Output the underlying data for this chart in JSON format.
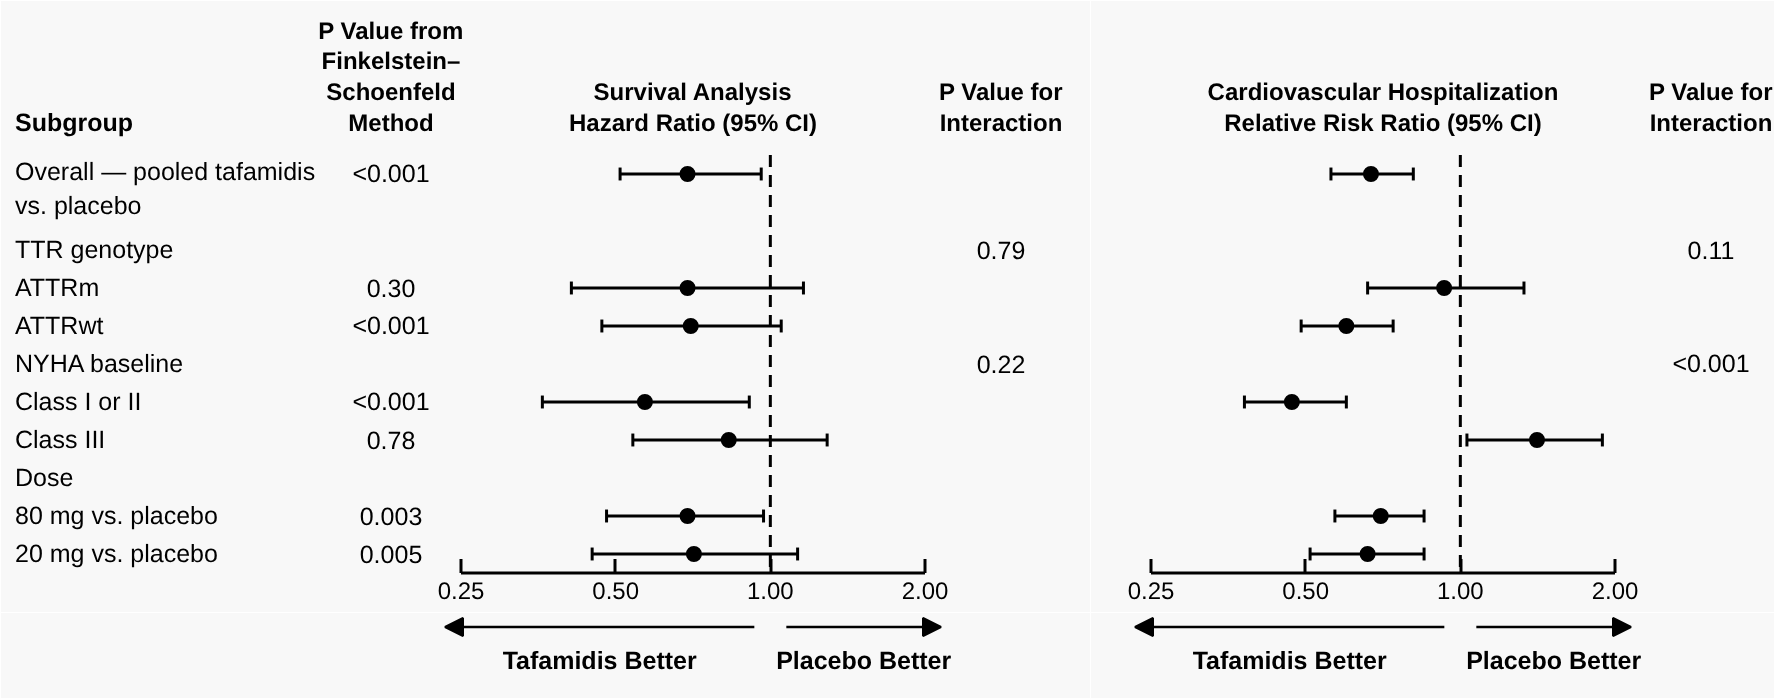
{
  "chart_data": [
    {
      "type": "scatter",
      "orientation": "horizontal",
      "title": "Survival Analysis Hazard Ratio (95% CI)",
      "ylabel": "Subgroup",
      "categories": [
        "Overall — pooled tafamidis vs. placebo",
        null,
        "TTR genotype",
        "ATTRm",
        "ATTRwt",
        "NYHA baseline",
        "Class I or II",
        "Class III",
        "Dose",
        "80 mg vs. placebo",
        "20 mg vs. placebo"
      ],
      "series": [
        {
          "color": "#000000",
          "values": [
            0.69,
            null,
            null,
            0.69,
            0.7,
            null,
            0.57,
            0.83,
            null,
            0.69,
            0.71
          ],
          "errors": [
            [
              0.51,
              0.96
            ],
            null,
            null,
            [
              0.41,
              1.16
            ],
            [
              0.47,
              1.05
            ],
            null,
            [
              0.36,
              0.91
            ],
            [
              0.54,
              1.29
            ],
            null,
            [
              0.48,
              0.97
            ],
            [
              0.45,
              1.13
            ]
          ]
        }
      ],
      "marker": "circle",
      "log": "x",
      "xlim": [
        0.25,
        2
      ],
      "xticks": [
        0.25,
        {
          "value": 0.5,
          "label": "0.50"
        },
        {
          "value": 1,
          "label": "1.00"
        },
        {
          "value": 2,
          "label": "2.00"
        }
      ],
      "ref_lines": [
        {
          "axis": "x",
          "value": 1,
          "line_style": "dashed",
          "color": "#000000"
        }
      ],
      "annotations": [
        "P Value from Finkelstein–Schoenfeld Method",
        "<0.001",
        "0.30",
        "<0.001",
        "<0.001",
        "0.78",
        "0.003",
        "0.005",
        "P Value for Interaction",
        "0.79",
        "0.22",
        "Tafamidis Better",
        "Placebo Better"
      ]
    },
    {
      "type": "scatter",
      "orientation": "horizontal",
      "title": "Cardiovascular Hospitalization Relative Risk Ratio (95% CI)",
      "categories": [
        null,
        null,
        null,
        null,
        null,
        null,
        null,
        null,
        null,
        null,
        null
      ],
      "series": [
        {
          "color": "#000000",
          "values": [
            0.67,
            null,
            null,
            0.93,
            0.6,
            null,
            0.47,
            1.41,
            null,
            0.7,
            0.66
          ],
          "errors": [
            [
              0.56,
              0.81
            ],
            null,
            null,
            [
              0.66,
              1.33
            ],
            [
              0.49,
              0.74
            ],
            null,
            [
              0.38,
              0.6
            ],
            [
              1.03,
              1.89
            ],
            null,
            [
              0.57,
              0.85
            ],
            [
              0.51,
              0.85
            ]
          ]
        }
      ],
      "marker": "circle",
      "log": "x",
      "xlim": [
        0.25,
        2
      ],
      "tick_labels": "x",
      "xticks": [
        0.25,
        {
          "value": 0.5,
          "label": "0.50"
        },
        {
          "value": 1,
          "label": "1.00"
        },
        {
          "value": 2,
          "label": "2.00"
        }
      ],
      "ref_lines": [
        {
          "axis": "x",
          "value": 1,
          "line_style": "dashed",
          "color": "#000000"
        }
      ],
      "annotations": [
        "P Value for Interaction",
        "0.11",
        "<0.001",
        "Tafamidis Better",
        "Placebo Better"
      ]
    }
  ]
}
